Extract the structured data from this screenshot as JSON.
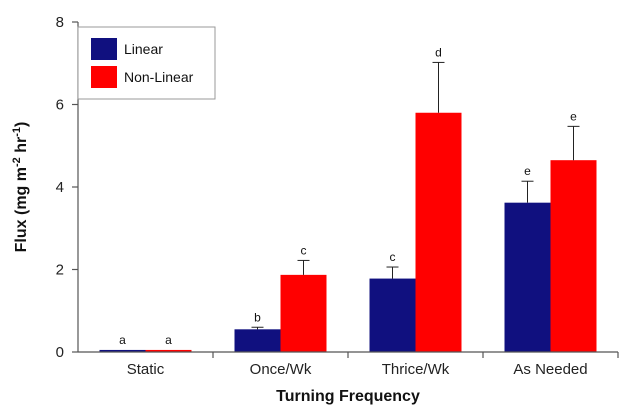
{
  "chart_data": {
    "type": "bar",
    "xlabel": "Turning Frequency",
    "ylabel": "Flux (mg m-2 hr-1)",
    "ylabel_parts": {
      "base": "Flux (mg m",
      "exp1": "-2",
      "mid": " hr",
      "exp2": "-1",
      "end": ")"
    },
    "ylim": [
      0,
      8
    ],
    "yticks": [
      0,
      2,
      4,
      6,
      8
    ],
    "grid": false,
    "legend_position": "top-left",
    "categories": [
      "Static",
      "Once/Wk",
      "Thrice/Wk",
      "As Needed"
    ],
    "series": [
      {
        "name": "Linear",
        "color": "#10107f",
        "values": [
          0.05,
          0.55,
          1.78,
          3.62
        ],
        "errors": [
          0.0,
          0.05,
          0.28,
          0.52
        ],
        "letters": [
          "a",
          "b",
          "c",
          "e"
        ]
      },
      {
        "name": "Non-Linear",
        "color": "#ff0000",
        "values": [
          0.05,
          1.87,
          5.8,
          4.65
        ],
        "errors": [
          0.0,
          0.35,
          1.22,
          0.82
        ],
        "letters": [
          "a",
          "c",
          "d",
          "e"
        ]
      }
    ]
  }
}
